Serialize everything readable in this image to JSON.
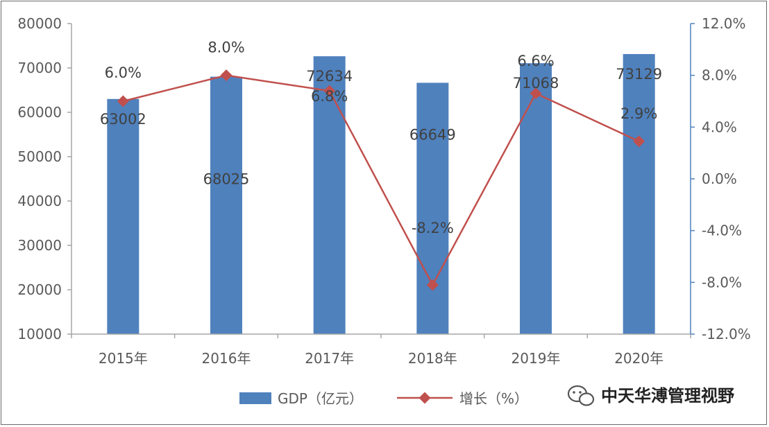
{
  "chart_data": {
    "type": "bar",
    "categories": [
      "2015年",
      "2016年",
      "2017年",
      "2018年",
      "2019年",
      "2020年"
    ],
    "series": [
      {
        "name": "GDP（亿元）",
        "type": "bar",
        "axis": "left",
        "color": "#4f81bd",
        "values": [
          63002,
          68025,
          72634,
          66649,
          71068,
          73129
        ],
        "labels": [
          "63002",
          "68025",
          "72634",
          "66649",
          "71068",
          "73129"
        ]
      },
      {
        "name": "增长（%）",
        "type": "line",
        "axis": "right",
        "color": "#c0504d",
        "values": [
          6.0,
          8.0,
          6.8,
          -8.2,
          6.6,
          2.9
        ],
        "labels": [
          "6.0%",
          "8.0%",
          "6.8%",
          "-8.2%",
          "6.6%",
          "2.9%"
        ]
      }
    ],
    "y_left": {
      "min": 10000,
      "max": 80000,
      "ticks": [
        "10000",
        "20000",
        "30000",
        "40000",
        "50000",
        "60000",
        "70000",
        "80000"
      ]
    },
    "y_right": {
      "min": -12.0,
      "max": 12.0,
      "ticks": [
        "-12.0%",
        "-8.0%",
        "-4.0%",
        "0.0%",
        "4.0%",
        "8.0%",
        "12.0%"
      ]
    },
    "title": "",
    "xlabel": "",
    "ylabel": "",
    "grid": false,
    "legend_position": "bottom"
  },
  "watermark": {
    "text": "中天华溥管理视野",
    "icon": "wechat-icon"
  }
}
